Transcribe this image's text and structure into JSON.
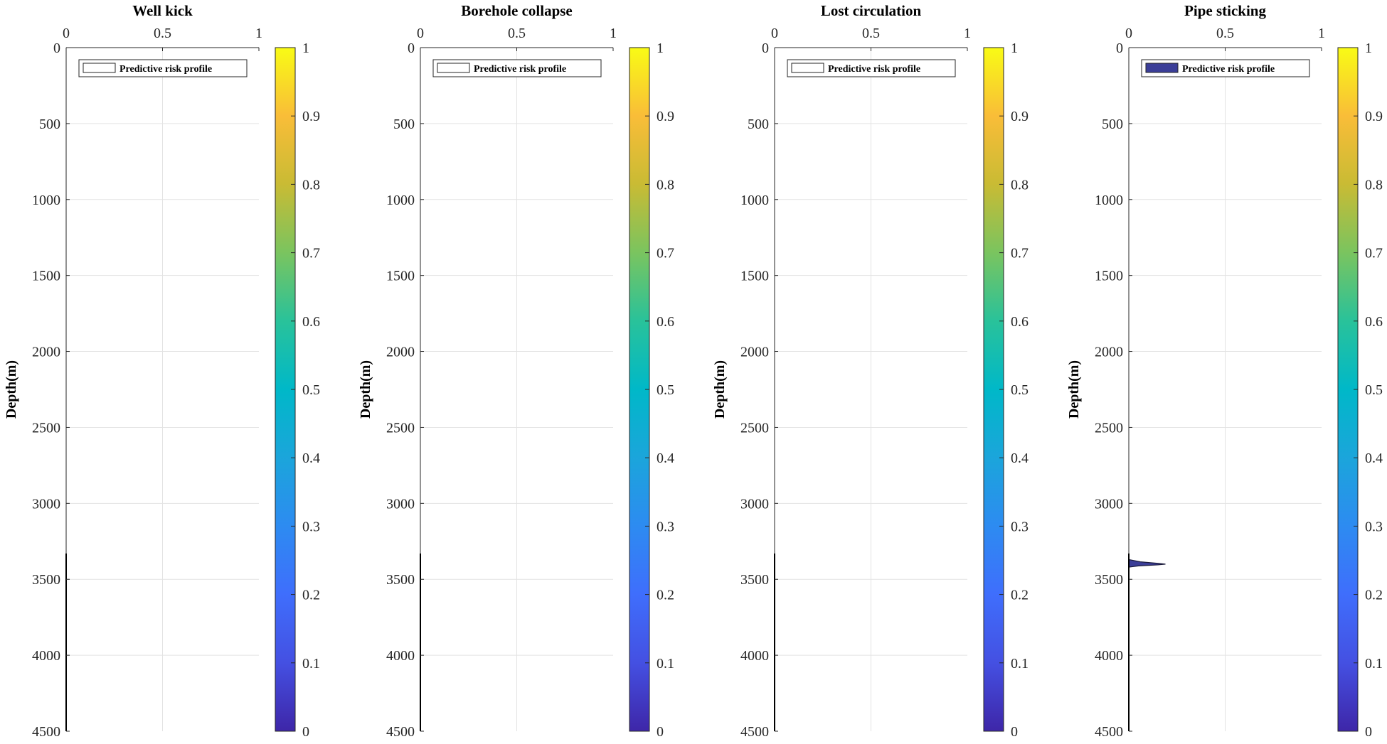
{
  "chart_data": [
    {
      "type": "area",
      "title": "Well kick",
      "ylabel": "Depth(m)",
      "xlabel": "",
      "xlim": [
        0,
        1
      ],
      "ylim": [
        0,
        4500
      ],
      "y_reversed": true,
      "x_axis_position": "top",
      "grid": true,
      "x_ticks": [
        0,
        0.5,
        1
      ],
      "y_ticks": [
        0,
        500,
        1000,
        1500,
        2000,
        2500,
        3000,
        3500,
        4000,
        4500
      ],
      "legend": {
        "label": "Predictive risk profile",
        "placement": "top",
        "fill": "#ffffff"
      },
      "series": [
        {
          "name": "Predictive risk profile",
          "points": []
        }
      ],
      "colorbar": {
        "min": 0,
        "max": 1,
        "ticks": [
          0,
          0.1,
          0.2,
          0.3,
          0.4,
          0.5,
          0.6,
          0.7,
          0.8,
          0.9,
          1
        ],
        "colormap": "parula"
      }
    },
    {
      "type": "area",
      "title": "Borehole collapse",
      "ylabel": "Depth(m)",
      "xlabel": "",
      "xlim": [
        0,
        1
      ],
      "ylim": [
        0,
        4500
      ],
      "y_reversed": true,
      "x_axis_position": "top",
      "grid": true,
      "x_ticks": [
        0,
        0.5,
        1
      ],
      "y_ticks": [
        0,
        500,
        1000,
        1500,
        2000,
        2500,
        3000,
        3500,
        4000,
        4500
      ],
      "legend": {
        "label": "Predictive risk profile",
        "placement": "top",
        "fill": "#ffffff"
      },
      "series": [
        {
          "name": "Predictive risk profile",
          "points": []
        }
      ],
      "colorbar": {
        "min": 0,
        "max": 1,
        "ticks": [
          0,
          0.1,
          0.2,
          0.3,
          0.4,
          0.5,
          0.6,
          0.7,
          0.8,
          0.9,
          1
        ],
        "colormap": "parula"
      }
    },
    {
      "type": "area",
      "title": "Lost circulation",
      "ylabel": "Depth(m)",
      "xlabel": "",
      "xlim": [
        0,
        1
      ],
      "ylim": [
        0,
        4500
      ],
      "y_reversed": true,
      "x_axis_position": "top",
      "grid": true,
      "x_ticks": [
        0,
        0.5,
        1
      ],
      "y_ticks": [
        0,
        500,
        1000,
        1500,
        2000,
        2500,
        3000,
        3500,
        4000,
        4500
      ],
      "legend": {
        "label": "Predictive risk profile",
        "placement": "top",
        "fill": "#ffffff"
      },
      "series": [
        {
          "name": "Predictive risk profile",
          "points": []
        }
      ],
      "colorbar": {
        "min": 0,
        "max": 1,
        "ticks": [
          0,
          0.1,
          0.2,
          0.3,
          0.4,
          0.5,
          0.6,
          0.7,
          0.8,
          0.9,
          1
        ],
        "colormap": "parula"
      }
    },
    {
      "type": "area",
      "title": "Pipe sticking",
      "ylabel": "Depth(m)",
      "xlabel": "",
      "xlim": [
        0,
        1
      ],
      "ylim": [
        0,
        4500
      ],
      "y_reversed": true,
      "x_axis_position": "top",
      "grid": true,
      "x_ticks": [
        0,
        0.5,
        1
      ],
      "y_ticks": [
        0,
        500,
        1000,
        1500,
        2000,
        2500,
        3000,
        3500,
        4000,
        4500
      ],
      "legend": {
        "label": "Predictive risk profile",
        "placement": "top",
        "fill": "#3b3e98"
      },
      "series": [
        {
          "name": "Predictive risk profile",
          "fill": "#3b3e98",
          "points": [
            {
              "depth": 3370,
              "risk": 0.0
            },
            {
              "depth": 3385,
              "risk": 0.06
            },
            {
              "depth": 3395,
              "risk": 0.15
            },
            {
              "depth": 3400,
              "risk": 0.19
            },
            {
              "depth": 3405,
              "risk": 0.15
            },
            {
              "depth": 3412,
              "risk": 0.05
            },
            {
              "depth": 3420,
              "risk": 0.0
            }
          ]
        }
      ],
      "colorbar": {
        "min": 0,
        "max": 1,
        "ticks": [
          0,
          0.1,
          0.2,
          0.3,
          0.4,
          0.5,
          0.6,
          0.7,
          0.8,
          0.9,
          1
        ],
        "colormap": "parula"
      }
    }
  ]
}
